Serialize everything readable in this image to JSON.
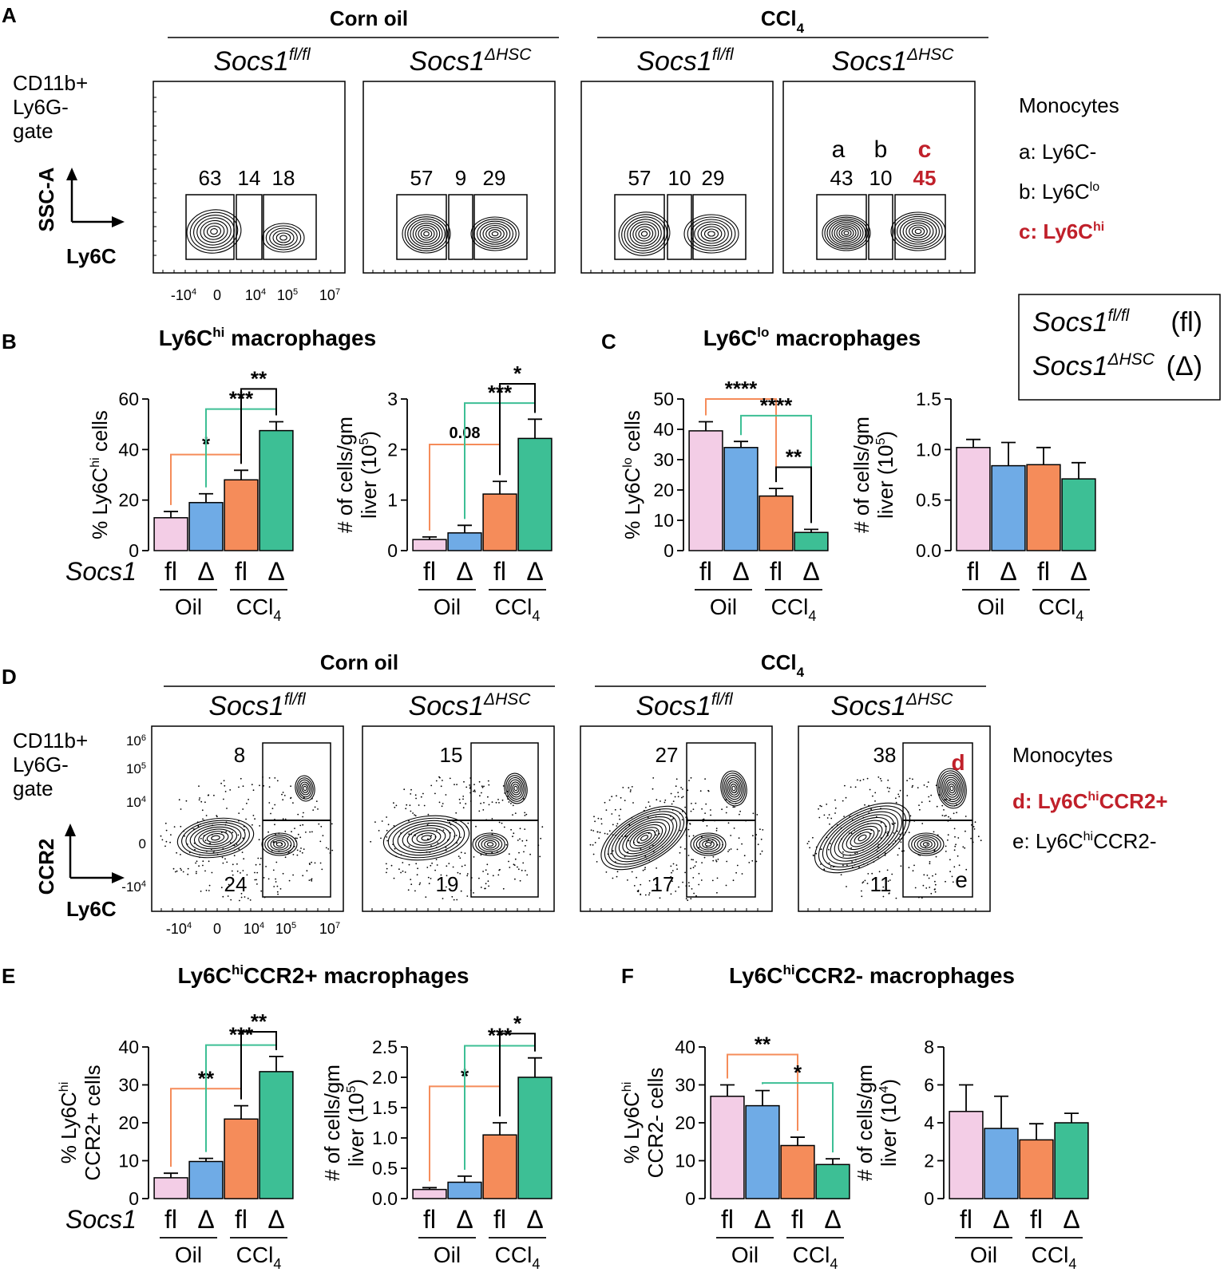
{
  "colors": {
    "fl_oil": "#f3cde6",
    "del_oil": "#6fabe6",
    "fl_ccl4": "#f58c5a",
    "del_ccl4": "#3dbf95",
    "red": "#c0202a",
    "orange_bracket": "#f58c5a",
    "teal_bracket": "#3dbf95"
  },
  "panels": {
    "A": {
      "letter": "A",
      "group1": "Corn oil",
      "group2": "CCl",
      "group2_sub": "4",
      "plot_titles": [
        {
          "base": "Socs1",
          "sup": "fl/fl"
        },
        {
          "base": "Socs1",
          "sup": "ΔHSC"
        },
        {
          "base": "Socs1",
          "sup": "fl/fl"
        },
        {
          "base": "Socs1",
          "sup": "ΔHSC"
        }
      ],
      "gate_label": [
        "CD11b+",
        "Ly6G-",
        "gate"
      ],
      "y_axis": "SSC-A",
      "x_axis": "Ly6C",
      "x_ticks": [
        {
          "base": "-10",
          "sup": "4"
        },
        {
          "base": "0",
          "sup": ""
        },
        {
          "base": "10",
          "sup": "4"
        },
        {
          "base": "10",
          "sup": "5"
        },
        {
          "base": "10",
          "sup": "7"
        }
      ],
      "gate_values": [
        [
          "63",
          "14",
          "18"
        ],
        [
          "57",
          "9",
          "29"
        ],
        [
          "57",
          "10",
          "29"
        ],
        [
          "43",
          "10",
          "45"
        ]
      ],
      "gate_letters": [
        "a",
        "b",
        "c"
      ],
      "legend_title": "Monocytes",
      "legend_items": [
        {
          "label": "a: Ly6C-",
          "sup": "",
          "red": false
        },
        {
          "label": "b: Ly6C",
          "sup": "lo",
          "red": false
        },
        {
          "label": "c: Ly6C",
          "sup": "hi",
          "red": true
        }
      ]
    },
    "genotype_legend": {
      "rows": [
        {
          "base": "Socs1",
          "sup": "fl/fl",
          "abbr": "(fl)"
        },
        {
          "base": "Socs1",
          "sup": "ΔHSC",
          "abbr": "(Δ)"
        }
      ]
    },
    "D": {
      "letter": "D",
      "group1": "Corn oil",
      "group2": "CCl",
      "group2_sub": "4",
      "gate_label": [
        "CD11b+",
        "Ly6G-",
        "gate"
      ],
      "y_axis": "CCR2",
      "x_axis": "Ly6C",
      "y_ticks": [
        {
          "base": "10",
          "sup": "6"
        },
        {
          "base": "10",
          "sup": "5"
        },
        {
          "base": "10",
          "sup": "4"
        },
        {
          "base": "0",
          "sup": ""
        },
        {
          "base": "-10",
          "sup": "4"
        }
      ],
      "x_ticks": [
        {
          "base": "-10",
          "sup": "4"
        },
        {
          "base": "0",
          "sup": ""
        },
        {
          "base": "10",
          "sup": "4"
        },
        {
          "base": "10",
          "sup": "5"
        },
        {
          "base": "10",
          "sup": "7"
        }
      ],
      "top_values": [
        "8",
        "15",
        "27",
        "38"
      ],
      "bottom_values": [
        "24",
        "19",
        "17",
        "11"
      ],
      "gate_letters": [
        "d",
        "e"
      ],
      "legend_title": "Monocytes",
      "legend_items": [
        {
          "label": "d: Ly6C",
          "sup": "hi",
          "tail": "CCR2+",
          "red": true
        },
        {
          "label": "e: Ly6C",
          "sup": "hi",
          "tail": "CCR2-",
          "red": false
        }
      ]
    }
  },
  "group_axis": {
    "fl": "fl",
    "del": "Δ",
    "oil": "Oil",
    "ccl": "CCl",
    "ccl_sub": "4",
    "socs1": "Socs1"
  },
  "chart_data": [
    {
      "id": "B1",
      "type": "bar",
      "panel": "B",
      "title": {
        "base": "Ly6C",
        "sup": "hi",
        "tail": " macrophages"
      },
      "categories": [
        "Oil fl",
        "Oil Δ",
        "CCl4 fl",
        "CCl4 Δ"
      ],
      "values": [
        13,
        19,
        28,
        47.5
      ],
      "errors": [
        2.5,
        3.5,
        3.8,
        3.5
      ],
      "ylim": [
        0,
        60
      ],
      "yticks": [
        "0",
        "20",
        "40",
        "60"
      ],
      "ylabel": {
        "lines": [
          {
            "base": "% Ly6C",
            "sup": "hi",
            "tail": " cells"
          }
        ]
      },
      "brackets": [
        {
          "a": 0,
          "b": 2,
          "y": 38,
          "color": "orange",
          "label": "*"
        },
        {
          "a": 1,
          "b": 3,
          "y": 56,
          "color": "teal",
          "label": "***"
        },
        {
          "a": 2,
          "b": 3,
          "y": 64,
          "color": "black",
          "label": "**"
        }
      ]
    },
    {
      "id": "B2",
      "type": "bar",
      "panel": "B",
      "categories": [
        "Oil fl",
        "Oil Δ",
        "CCl4 fl",
        "CCl4 Δ"
      ],
      "values": [
        0.22,
        0.35,
        1.12,
        2.22
      ],
      "errors": [
        0.05,
        0.15,
        0.25,
        0.38
      ],
      "ylim": [
        0,
        3
      ],
      "yticks": [
        "0",
        "1",
        "2",
        "3"
      ],
      "ylabel": {
        "lines": [
          {
            "base": "# of cells/gm",
            "sup": "",
            "tail": ""
          },
          {
            "base": "liver (10",
            "sup": "5",
            "tail": ")"
          }
        ]
      },
      "brackets": [
        {
          "a": 0,
          "b": 2,
          "y": 2.1,
          "color": "orange",
          "label": "0.08"
        },
        {
          "a": 1,
          "b": 3,
          "y": 2.92,
          "color": "teal",
          "label": "***"
        },
        {
          "a": 2,
          "b": 3,
          "y": 3.3,
          "color": "black",
          "label": "*"
        }
      ]
    },
    {
      "id": "C1",
      "type": "bar",
      "panel": "C",
      "title": {
        "base": "Ly6C",
        "sup": "lo",
        "tail": " macrophages"
      },
      "categories": [
        "Oil fl",
        "Oil Δ",
        "CCl4 fl",
        "CCl4 Δ"
      ],
      "values": [
        39.5,
        34,
        18,
        6
      ],
      "errors": [
        3,
        2,
        2.5,
        1
      ],
      "ylim": [
        0,
        50
      ],
      "yticks": [
        "0",
        "10",
        "20",
        "30",
        "40",
        "50"
      ],
      "ylabel": {
        "lines": [
          {
            "base": "% Ly6C",
            "sup": "lo",
            "tail": " cells"
          }
        ]
      },
      "brackets": [
        {
          "a": 0,
          "b": 2,
          "y": 50,
          "color": "orange",
          "label": "****"
        },
        {
          "a": 1,
          "b": 3,
          "y": 44.5,
          "color": "teal",
          "label": "****"
        },
        {
          "a": 2,
          "b": 3,
          "y": 27.5,
          "color": "black",
          "label": "**"
        }
      ]
    },
    {
      "id": "C2",
      "type": "bar",
      "panel": "C",
      "categories": [
        "Oil fl",
        "Oil Δ",
        "CCl4 fl",
        "CCl4 Δ"
      ],
      "values": [
        1.02,
        0.84,
        0.85,
        0.71
      ],
      "errors": [
        0.08,
        0.23,
        0.17,
        0.16
      ],
      "ylim": [
        0,
        1.5
      ],
      "yticks": [
        "0.0",
        "0.5",
        "1.0",
        "1.5"
      ],
      "ylabel": {
        "lines": [
          {
            "base": "# of cells/gm",
            "sup": "",
            "tail": ""
          },
          {
            "base": "liver (10",
            "sup": "5",
            "tail": ")"
          }
        ]
      },
      "brackets": []
    },
    {
      "id": "E1",
      "type": "bar",
      "panel": "E",
      "title": {
        "base": "Ly6C",
        "sup": "hi",
        "tail": "CCR2+  macrophages"
      },
      "categories": [
        "Oil fl",
        "Oil Δ",
        "CCl4 fl",
        "CCl4 Δ"
      ],
      "values": [
        5.5,
        9.8,
        21,
        33.5
      ],
      "errors": [
        1.2,
        0.8,
        3.5,
        4
      ],
      "ylim": [
        0,
        40
      ],
      "yticks": [
        "0",
        "10",
        "20",
        "30",
        "40"
      ],
      "ylabel": {
        "lines": [
          {
            "base": "% Ly6C",
            "sup": "hi",
            "tail": ""
          },
          {
            "base": "CCR2+ cells",
            "sup": "",
            "tail": ""
          }
        ]
      },
      "brackets": [
        {
          "a": 0,
          "b": 2,
          "y": 29,
          "color": "orange",
          "label": "**"
        },
        {
          "a": 1,
          "b": 3,
          "y": 40.5,
          "color": "teal",
          "label": "***"
        },
        {
          "a": 2,
          "b": 3,
          "y": 44,
          "color": "black",
          "label": "**"
        }
      ]
    },
    {
      "id": "E2",
      "type": "bar",
      "panel": "E",
      "categories": [
        "Oil fl",
        "Oil Δ",
        "CCl4 fl",
        "CCl4 Δ"
      ],
      "values": [
        0.15,
        0.27,
        1.05,
        2.0
      ],
      "errors": [
        0.03,
        0.1,
        0.2,
        0.32
      ],
      "ylim": [
        0,
        2.5
      ],
      "yticks": [
        "0.0",
        "0.5",
        "1.0",
        "1.5",
        "2.0",
        "2.5"
      ],
      "ylabel": {
        "lines": [
          {
            "base": "# of cells/gm",
            "sup": "",
            "tail": ""
          },
          {
            "base": "liver (10",
            "sup": "5",
            "tail": ")"
          }
        ]
      },
      "brackets": [
        {
          "a": 0,
          "b": 2,
          "y": 1.85,
          "color": "orange",
          "label": "*"
        },
        {
          "a": 1,
          "b": 3,
          "y": 2.52,
          "color": "teal",
          "label": "***"
        },
        {
          "a": 2,
          "b": 3,
          "y": 2.72,
          "color": "black",
          "label": "*"
        }
      ]
    },
    {
      "id": "F1",
      "type": "bar",
      "panel": "F",
      "title": {
        "base": "Ly6C",
        "sup": "hi",
        "tail": "CCR2-  macrophages"
      },
      "categories": [
        "Oil fl",
        "Oil Δ",
        "CCl4 fl",
        "CCl4 Δ"
      ],
      "values": [
        27,
        24.5,
        14,
        9
      ],
      "errors": [
        3,
        4,
        2.2,
        1.5
      ],
      "ylim": [
        0,
        40
      ],
      "yticks": [
        "0",
        "10",
        "20",
        "30",
        "40"
      ],
      "ylabel": {
        "lines": [
          {
            "base": "% Ly6C",
            "sup": "hi",
            "tail": ""
          },
          {
            "base": "CCR2- cells",
            "sup": "",
            "tail": ""
          }
        ]
      },
      "brackets": [
        {
          "a": 0,
          "b": 2,
          "y": 38,
          "color": "orange",
          "label": "**"
        },
        {
          "a": 1,
          "b": 3,
          "y": 30.5,
          "color": "teal",
          "label": "*"
        }
      ]
    },
    {
      "id": "F2",
      "type": "bar",
      "panel": "F",
      "categories": [
        "Oil fl",
        "Oil Δ",
        "CCl4 fl",
        "CCl4 Δ"
      ],
      "values": [
        4.6,
        3.7,
        3.1,
        4.0
      ],
      "errors": [
        1.4,
        1.7,
        0.85,
        0.5
      ],
      "ylim": [
        0,
        8
      ],
      "yticks": [
        "0",
        "2",
        "4",
        "6",
        "8"
      ],
      "ylabel": {
        "lines": [
          {
            "base": "# of cells/gm",
            "sup": "",
            "tail": ""
          },
          {
            "base": "liver (10",
            "sup": "4",
            "tail": ")"
          }
        ]
      },
      "brackets": []
    }
  ]
}
